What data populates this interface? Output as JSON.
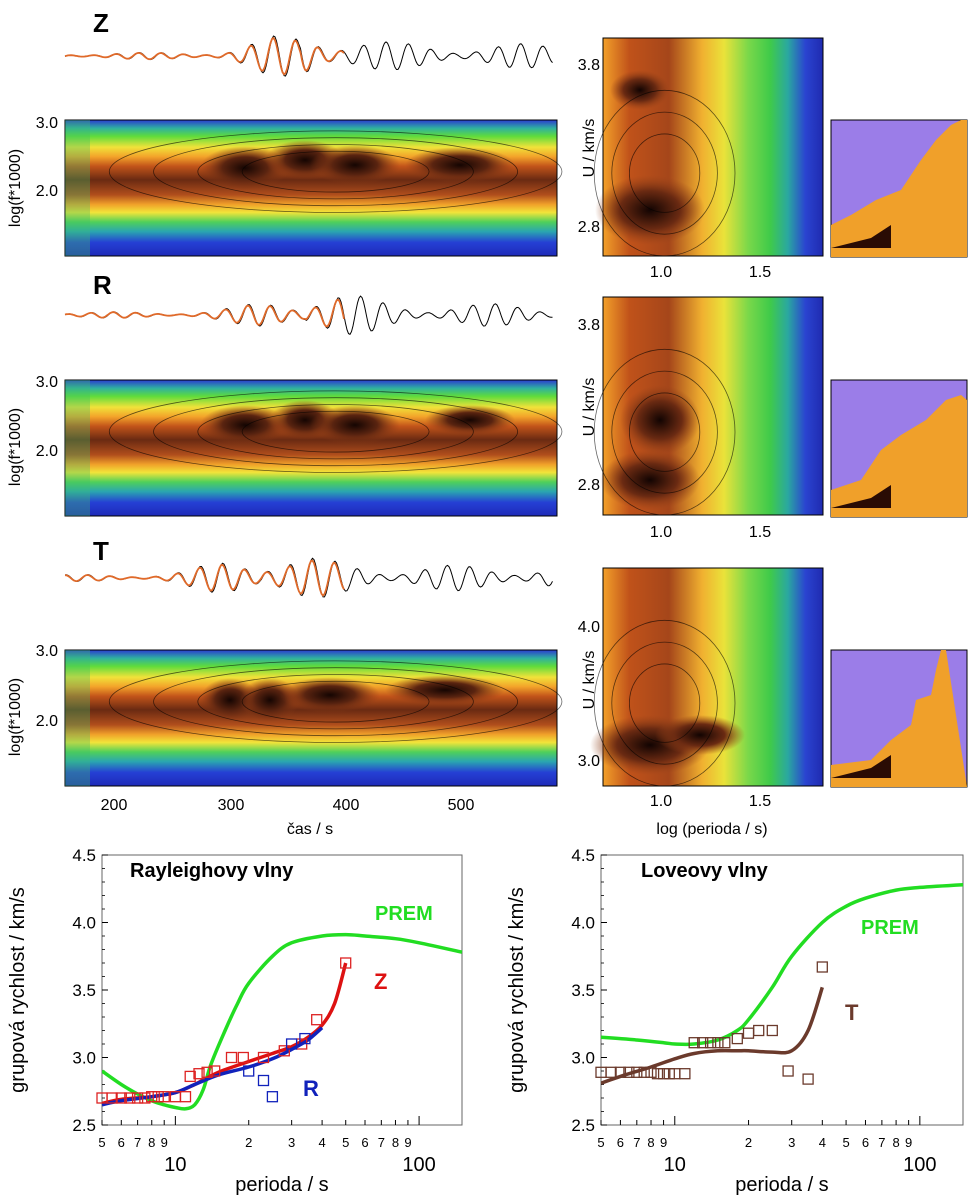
{
  "time_frequency": {
    "panels": [
      {
        "component": "Z",
        "ylabel": "log(f*1000)",
        "yticks": [
          "3.0",
          "2.0"
        ],
        "right_ylabel": "U / km/s",
        "right_yticks": [
          "3.8",
          "2.8"
        ],
        "right_xticks": [
          "1.0",
          "1.5"
        ],
        "has_filtered_inset": true
      },
      {
        "component": "R",
        "ylabel": "log(f*1000)",
        "yticks": [
          "3.0",
          "2.0"
        ],
        "right_ylabel": "U / km/s",
        "right_yticks": [
          "3.8",
          "2.8"
        ],
        "right_xticks": [
          "1.0",
          "1.5"
        ],
        "has_filtered_inset": true
      },
      {
        "component": "T",
        "ylabel": "log(f*1000)",
        "yticks": [
          "3.0",
          "2.0"
        ],
        "right_ylabel": "U / km/s",
        "right_yticks": [
          "4.0",
          "3.0"
        ],
        "right_xticks": [
          "1.0",
          "1.5"
        ],
        "has_filtered_inset": true
      }
    ],
    "xlabel": "čas / s",
    "xticks": [
      "200",
      "300",
      "400",
      "500"
    ],
    "right_xlabel": "log (perioda / s)"
  },
  "chart_data": [
    {
      "type": "line",
      "title": "Rayleighovy vlny",
      "xlabel": "perioda / s",
      "ylabel": "grupová rychlost / km/s",
      "xscale": "log",
      "xlim": [
        5,
        150
      ],
      "ylim": [
        2.5,
        4.5
      ],
      "yticks": [
        "2.5",
        "3.0",
        "3.5",
        "4.0",
        "4.5"
      ],
      "xticks_major": [
        "10",
        "100"
      ],
      "xticks_minor": [
        "5",
        "6",
        "7",
        "8",
        "9",
        "2",
        "3",
        "4",
        "5",
        "6",
        "7",
        "8",
        "9"
      ],
      "series": [
        {
          "name": "PREM",
          "color": "#22dd22",
          "kind": "curve",
          "x": [
            5,
            6,
            7,
            8,
            9,
            10,
            11,
            12,
            13,
            14,
            16,
            18,
            20,
            25,
            30,
            40,
            50,
            60,
            80,
            100,
            150
          ],
          "y": [
            2.9,
            2.8,
            2.73,
            2.68,
            2.65,
            2.63,
            2.62,
            2.65,
            2.76,
            2.95,
            3.2,
            3.4,
            3.55,
            3.75,
            3.85,
            3.9,
            3.91,
            3.9,
            3.88,
            3.85,
            3.78
          ]
        },
        {
          "name": "Z",
          "color": "#dd1111",
          "kind": "curve",
          "x": [
            5,
            6,
            8,
            10,
            12,
            15,
            20,
            25,
            30,
            35,
            40,
            45,
            50
          ],
          "y": [
            2.66,
            2.69,
            2.71,
            2.74,
            2.8,
            2.89,
            2.97,
            3.03,
            3.08,
            3.15,
            3.24,
            3.4,
            3.7
          ]
        },
        {
          "name": "R",
          "color": "#1122bb",
          "kind": "curve",
          "x": [
            5,
            6,
            8,
            10,
            12,
            15,
            20,
            25,
            30,
            35,
            40
          ],
          "y": [
            2.65,
            2.68,
            2.71,
            2.74,
            2.8,
            2.87,
            2.93,
            2.99,
            3.06,
            3.13,
            3.22
          ]
        },
        {
          "name": "",
          "color": "#dd2222",
          "kind": "markers",
          "x": [
            5,
            5.5,
            6,
            6.5,
            7,
            7.5,
            8,
            8.5,
            9,
            10,
            11,
            11.5,
            12.5,
            13.5,
            14.5,
            17,
            19,
            23,
            28,
            33,
            38,
            50
          ],
          "y": [
            2.7,
            2.7,
            2.7,
            2.7,
            2.7,
            2.7,
            2.71,
            2.71,
            2.71,
            2.71,
            2.71,
            2.86,
            2.88,
            2.89,
            2.9,
            3.0,
            3.0,
            3.0,
            3.05,
            3.1,
            3.28,
            3.7
          ]
        },
        {
          "name": "",
          "color": "#1122bb",
          "kind": "markers",
          "x": [
            20,
            23,
            25,
            30,
            34
          ],
          "y": [
            2.9,
            2.83,
            2.71,
            3.1,
            3.14
          ]
        }
      ],
      "annotations": [
        {
          "text": "PREM",
          "color": "#22dd22"
        },
        {
          "text": "Z",
          "color": "#dd1111"
        },
        {
          "text": "R",
          "color": "#1122bb"
        }
      ]
    },
    {
      "type": "line",
      "title": "Loveovy vlny",
      "xlabel": "perioda / s",
      "ylabel": "grupová rychlost / km/s",
      "xscale": "log",
      "xlim": [
        5,
        150
      ],
      "ylim": [
        2.5,
        4.5
      ],
      "yticks": [
        "2.5",
        "3.0",
        "3.5",
        "4.0",
        "4.5"
      ],
      "xticks_major": [
        "10",
        "100"
      ],
      "xticks_minor": [
        "5",
        "6",
        "7",
        "8",
        "9",
        "2",
        "3",
        "4",
        "5",
        "6",
        "7",
        "8",
        "9"
      ],
      "series": [
        {
          "name": "PREM",
          "color": "#22dd22",
          "kind": "curve",
          "x": [
            5,
            7,
            9,
            10,
            12,
            15,
            18,
            20,
            25,
            30,
            40,
            50,
            60,
            80,
            100,
            150
          ],
          "y": [
            3.15,
            3.13,
            3.11,
            3.1,
            3.1,
            3.13,
            3.2,
            3.28,
            3.52,
            3.75,
            4.0,
            4.12,
            4.18,
            4.24,
            4.26,
            4.28
          ]
        },
        {
          "name": "T",
          "color": "#6b3a2c",
          "kind": "curve",
          "x": [
            5,
            6,
            8,
            10,
            12,
            15,
            18,
            20,
            25,
            30,
            35,
            40
          ],
          "y": [
            2.81,
            2.86,
            2.93,
            2.99,
            3.03,
            3.05,
            3.05,
            3.05,
            3.04,
            3.05,
            3.2,
            3.52
          ]
        },
        {
          "name": "",
          "color": "#6b3a2c",
          "kind": "markers",
          "x": [
            5,
            5.5,
            6,
            6.5,
            7,
            7.5,
            8,
            8.5,
            9,
            9.5,
            10,
            11,
            12,
            13,
            14,
            15,
            16,
            18,
            20,
            22,
            25,
            29,
            35,
            40
          ],
          "y": [
            2.89,
            2.89,
            2.89,
            2.89,
            2.89,
            2.89,
            2.89,
            2.88,
            2.88,
            2.88,
            2.88,
            2.88,
            3.11,
            3.11,
            3.11,
            3.11,
            3.11,
            3.14,
            3.18,
            3.2,
            3.2,
            2.9,
            2.84,
            3.67
          ]
        }
      ],
      "annotations": [
        {
          "text": "PREM",
          "color": "#22dd22"
        },
        {
          "text": "T",
          "color": "#6b3a2c"
        }
      ]
    }
  ]
}
